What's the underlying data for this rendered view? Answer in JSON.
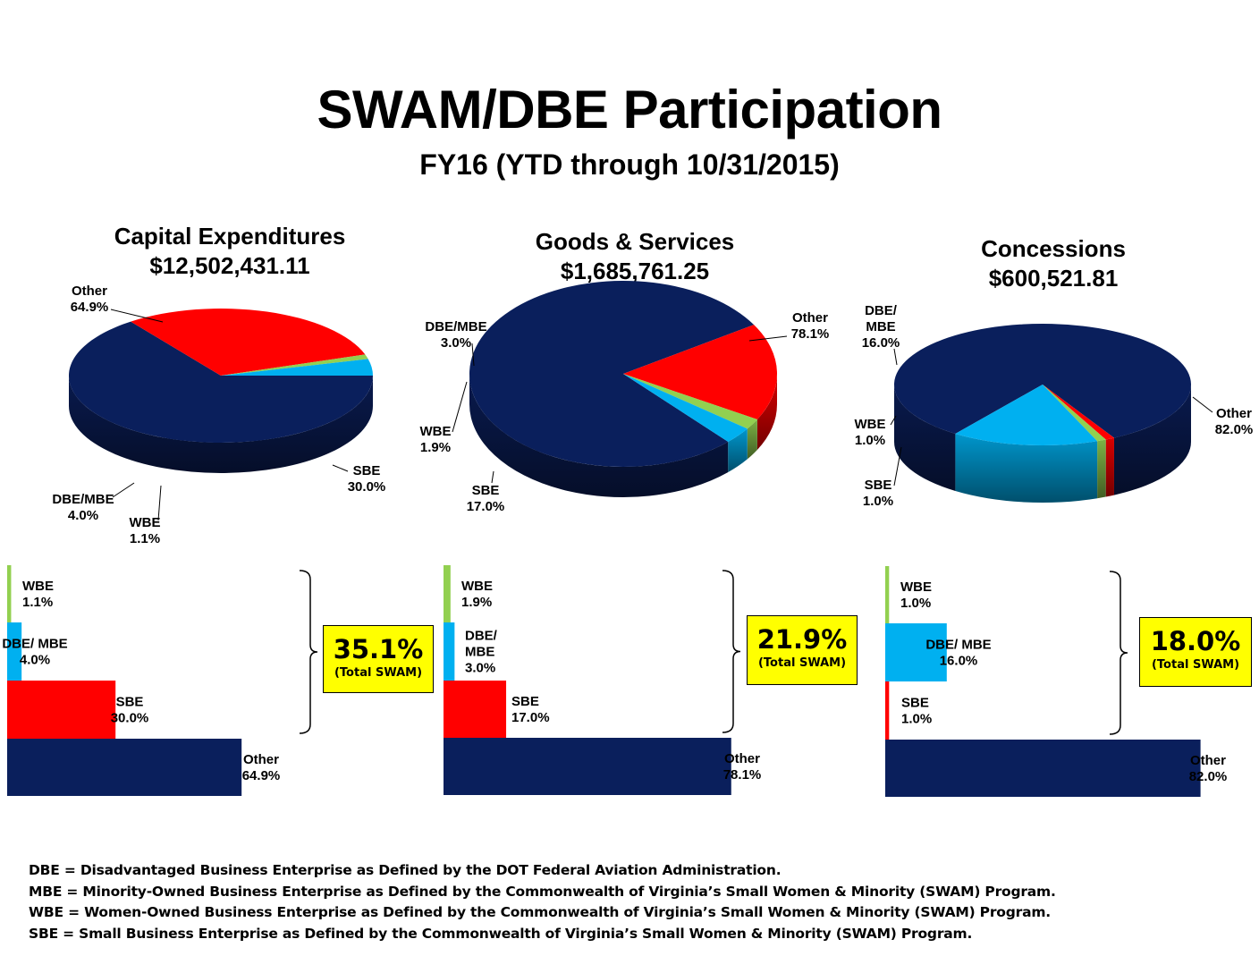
{
  "header": {
    "title": "SWAM/DBE Participation",
    "subtitle": "FY16 (YTD through 10/31/2015)"
  },
  "colors": {
    "Other": "#0a1f5c",
    "SBE": "#ff0000",
    "WBE": "#92d050",
    "DBE/MBE": "#00b0f0",
    "swam_box": "#ffff00"
  },
  "chart_data": [
    {
      "type": "pie",
      "title": "Capital Expenditures",
      "subtitle": "$12,502,431.11",
      "slices": [
        {
          "label": "Other",
          "value": 64.9,
          "display": "64.9%"
        },
        {
          "label": "SBE",
          "value": 30.0,
          "display": "30.0%"
        },
        {
          "label": "WBE",
          "value": 1.1,
          "display": "1.1%"
        },
        {
          "label": "DBE/MBE",
          "value": 4.0,
          "display": "4.0%"
        }
      ],
      "bars": [
        {
          "label": "WBE",
          "value": 1.1,
          "display": "1.1%"
        },
        {
          "label": "DBE/ MBE",
          "value": 4.0,
          "display": "4.0%"
        },
        {
          "label": "SBE",
          "value": 30.0,
          "display": "30.0%"
        },
        {
          "label": "Other",
          "value": 64.9,
          "display": "64.9%"
        }
      ],
      "total_swam": "35.1%",
      "total_swam_label": "(Total SWAM)"
    },
    {
      "type": "pie",
      "title": "Goods & Services",
      "subtitle": "$1,685,761.25",
      "slices": [
        {
          "label": "Other",
          "value": 78.1,
          "display": "78.1%"
        },
        {
          "label": "SBE",
          "value": 17.0,
          "display": "17.0%"
        },
        {
          "label": "WBE",
          "value": 1.9,
          "display": "1.9%"
        },
        {
          "label": "DBE/MBE",
          "value": 3.0,
          "display": "3.0%"
        }
      ],
      "bars": [
        {
          "label": "WBE",
          "value": 1.9,
          "display": "1.9%"
        },
        {
          "label": "DBE/ MBE",
          "value": 3.0,
          "display": "3.0%"
        },
        {
          "label": "SBE",
          "value": 17.0,
          "display": "17.0%"
        },
        {
          "label": "Other",
          "value": 78.1,
          "display": "78.1%"
        }
      ],
      "total_swam": "21.9%",
      "total_swam_label": "(Total SWAM)"
    },
    {
      "type": "pie",
      "title": "Concessions",
      "subtitle": "$600,521.81",
      "slices": [
        {
          "label": "Other",
          "value": 82.0,
          "display": "82.0%"
        },
        {
          "label": "SBE",
          "value": 1.0,
          "display": "1.0%"
        },
        {
          "label": "WBE",
          "value": 1.0,
          "display": "1.0%"
        },
        {
          "label": "DBE/MBE",
          "value": 16.0,
          "display": "16.0%"
        }
      ],
      "bars": [
        {
          "label": "WBE",
          "value": 1.0,
          "display": "1.0%"
        },
        {
          "label": "DBE/ MBE",
          "value": 16.0,
          "display": "16.0%"
        },
        {
          "label": "SBE",
          "value": 1.0,
          "display": "1.0%"
        },
        {
          "label": "Other",
          "value": 82.0,
          "display": "82.0%"
        }
      ],
      "total_swam": "18.0%",
      "total_swam_label": "(Total SWAM)"
    }
  ],
  "footnotes": [
    "DBE = Disadvantaged Business Enterprise as Defined by the DOT Federal Aviation Administration.",
    "MBE = Minority-Owned Business Enterprise as Defined by the Commonwealth of Virginia’s Small Women & Minority (SWAM) Program.",
    "WBE = Women-Owned Business Enterprise as Defined by the Commonwealth of Virginia’s Small Women & Minority (SWAM) Program.",
    "SBE = Small Business Enterprise as Defined by the Commonwealth of Virginia’s Small Women & Minority (SWAM) Program."
  ]
}
